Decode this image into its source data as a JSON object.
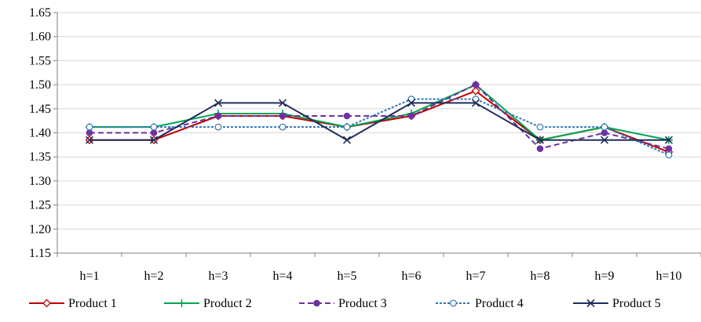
{
  "chart_data": {
    "type": "line",
    "categories": [
      "h=1",
      "h=2",
      "h=3",
      "h=4",
      "h=5",
      "h=6",
      "h=7",
      "h=8",
      "h=9",
      "h=10"
    ],
    "ylim": [
      1.15,
      1.65
    ],
    "yticks": [
      "1.15",
      "1.20",
      "1.25",
      "1.30",
      "1.35",
      "1.40",
      "1.45",
      "1.50",
      "1.55",
      "1.60",
      "1.65"
    ],
    "ytick_values": [
      1.15,
      1.2,
      1.25,
      1.3,
      1.35,
      1.4,
      1.45,
      1.5,
      1.55,
      1.6,
      1.65
    ],
    "grid": "horizontal",
    "legend_position": "bottom",
    "series": [
      {
        "name": "Product 1",
        "color": "#C00000",
        "marker": "diamond-open",
        "dash": "solid",
        "values": [
          1.385,
          1.385,
          1.435,
          1.435,
          1.412,
          1.435,
          1.487,
          1.385,
          1.412,
          1.36
        ]
      },
      {
        "name": "Product 2",
        "color": "#00A550",
        "marker": "plus",
        "dash": "solid",
        "values": [
          1.412,
          1.412,
          1.44,
          1.44,
          1.412,
          1.44,
          1.5,
          1.385,
          1.412,
          1.385
        ]
      },
      {
        "name": "Product 3",
        "color": "#7030A0",
        "marker": "circle-filled",
        "dash": "dash",
        "values": [
          1.4,
          1.4,
          1.435,
          1.435,
          1.435,
          1.435,
          1.5,
          1.367,
          1.4,
          1.367
        ]
      },
      {
        "name": "Product 4",
        "color": "#2E75B6",
        "marker": "circle-open",
        "dash": "dot",
        "values": [
          1.412,
          1.412,
          1.412,
          1.412,
          1.412,
          1.47,
          1.47,
          1.412,
          1.412,
          1.354
        ]
      },
      {
        "name": "Product 5",
        "color": "#1F2D5A",
        "marker": "x",
        "dash": "solid",
        "values": [
          1.385,
          1.385,
          1.462,
          1.462,
          1.385,
          1.462,
          1.462,
          1.385,
          1.385,
          1.385
        ]
      }
    ]
  }
}
